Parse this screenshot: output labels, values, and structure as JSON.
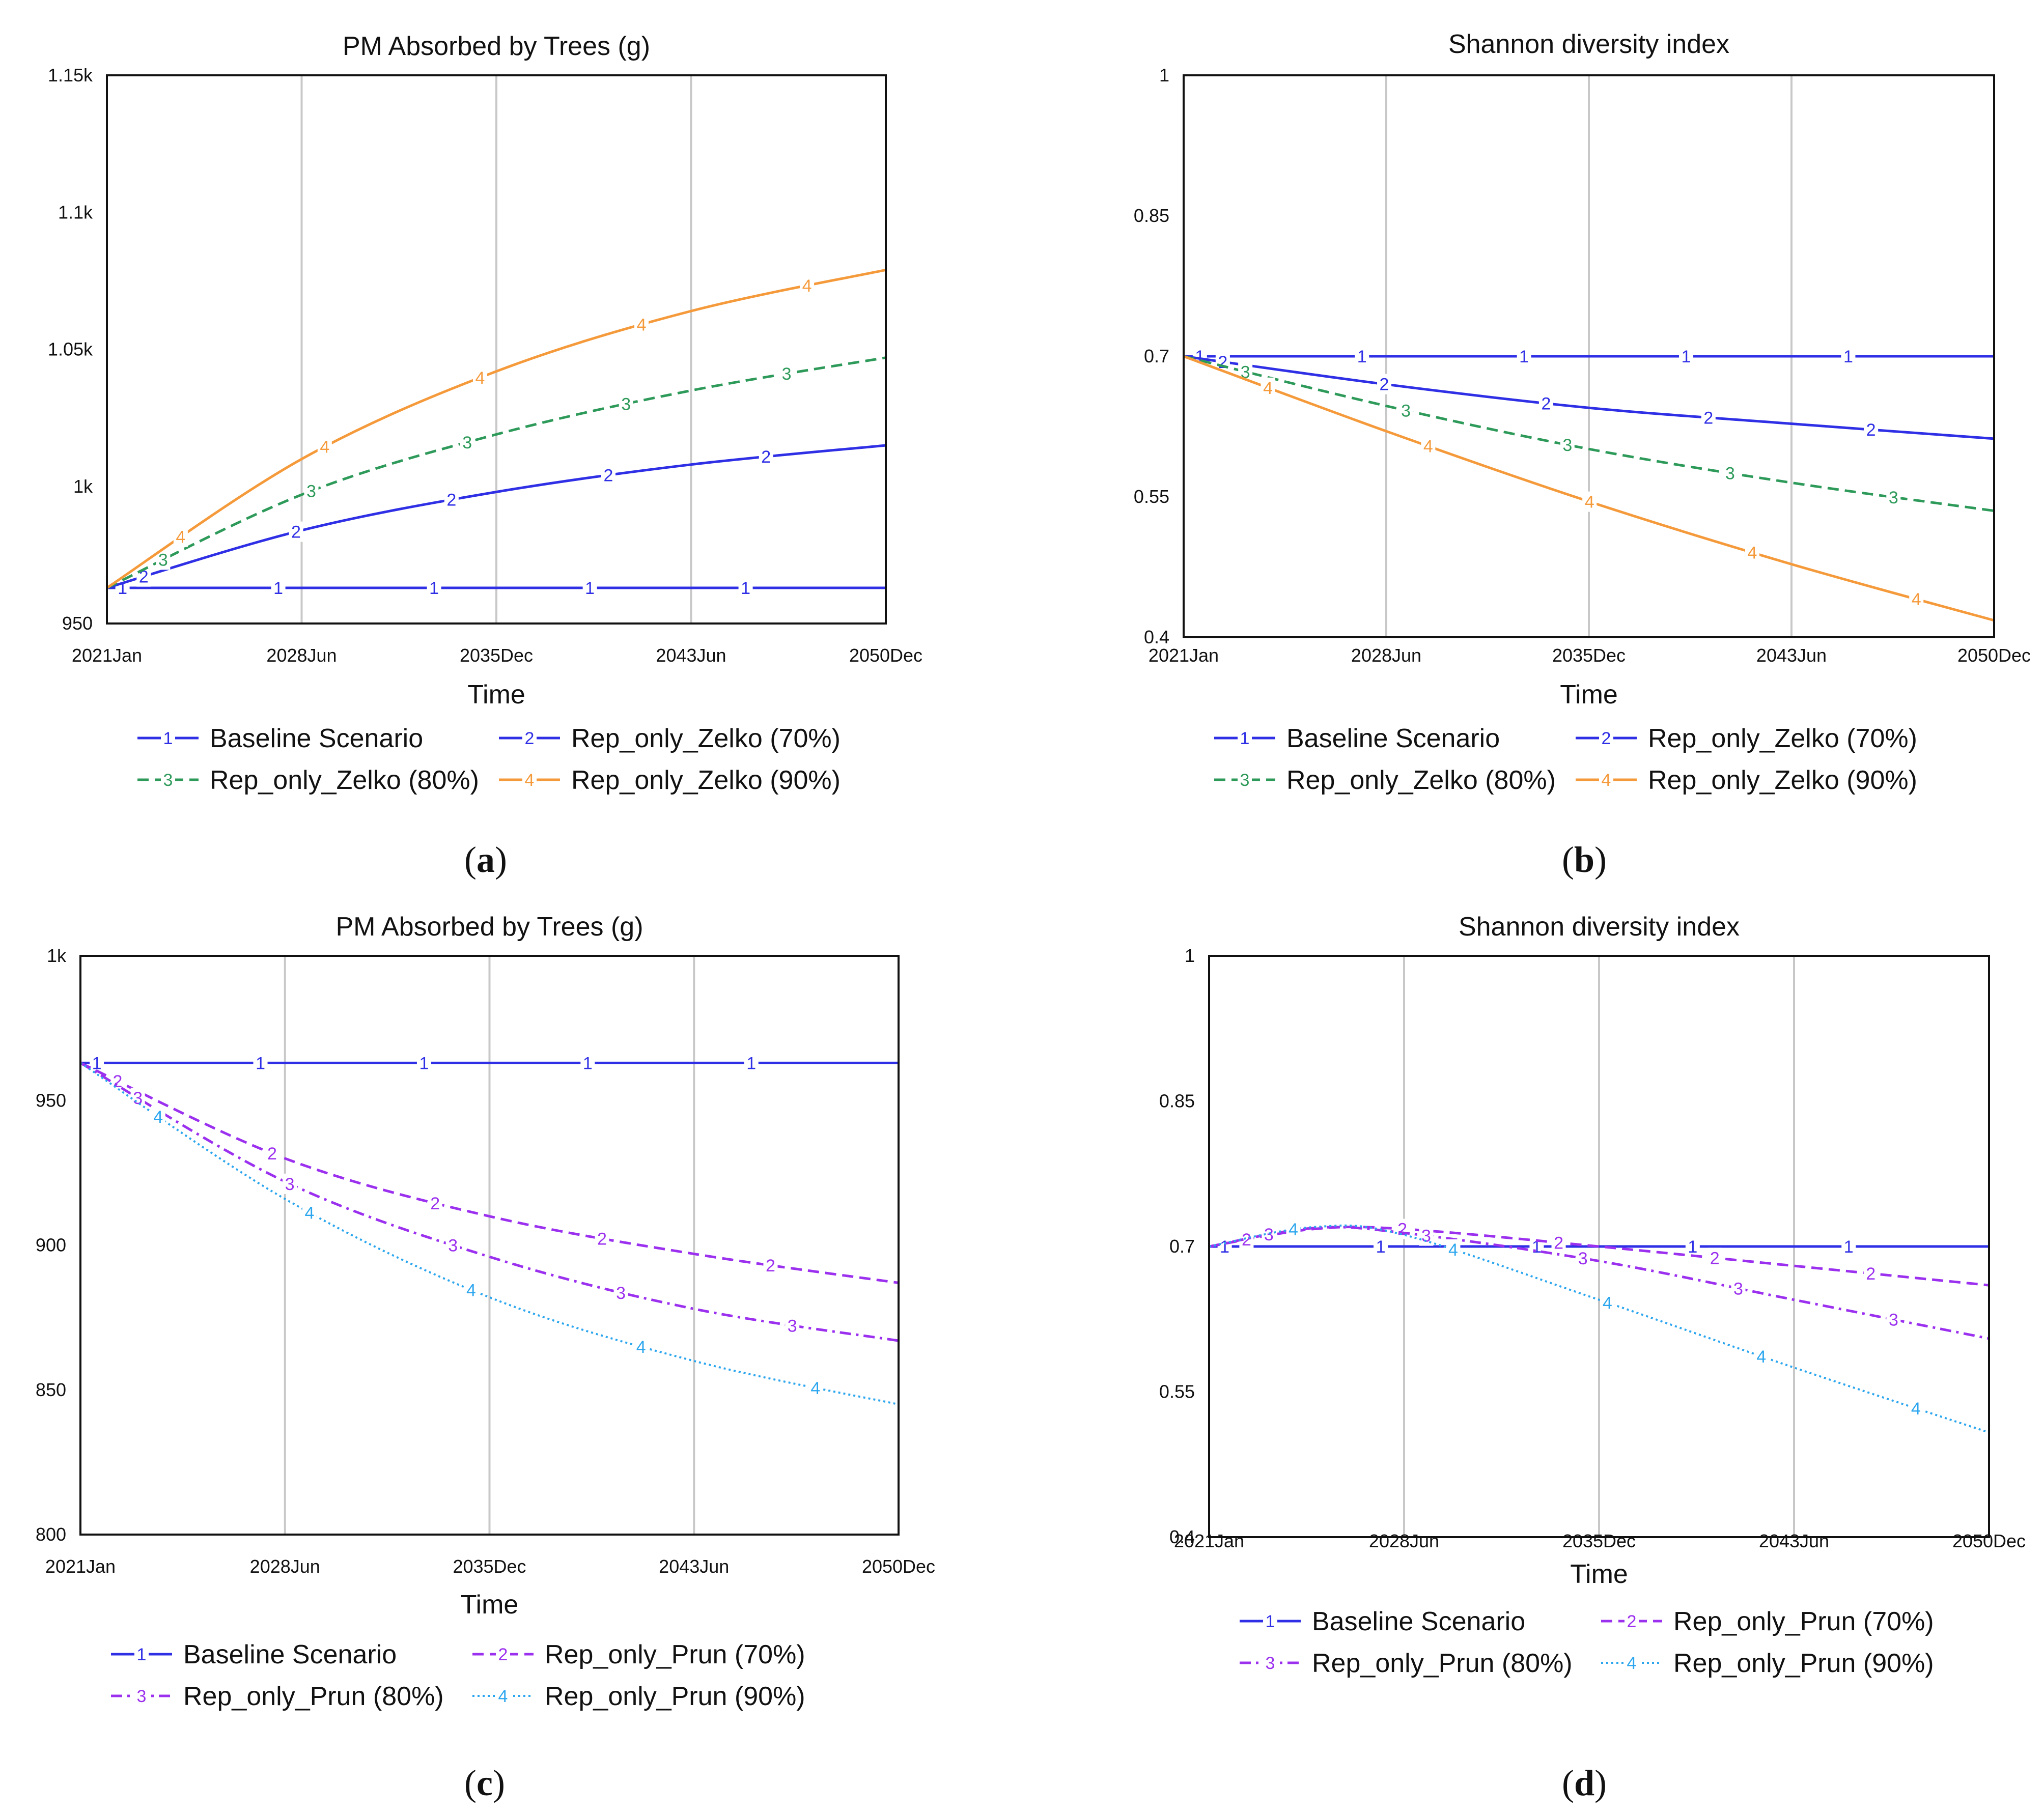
{
  "colors": {
    "baseline": "#2f2fe6",
    "zelko70": "#2f2fe6",
    "zelko80": "#2e9a5a",
    "zelko90": "#f59a3b",
    "prun70": "#9b30ef",
    "prun80": "#9b30ef",
    "prun90": "#2ba6ee",
    "grid": "#c8c8c8",
    "axis": "#111111"
  },
  "captions": {
    "a": [
      "(",
      "a",
      ")"
    ],
    "b": [
      "(",
      "b",
      ")"
    ],
    "c": [
      "(",
      "c",
      ")"
    ],
    "d": [
      "(",
      "d",
      ")"
    ]
  },
  "chart_data": [
    {
      "id": "a",
      "type": "line",
      "title": "PM Absorbed by Trees (g)",
      "xlabel": "Time",
      "ylabel": "",
      "x": [
        2021.0,
        2028.5,
        2036.0,
        2043.5,
        2051.0
      ],
      "xticks": [
        "2021Jan",
        "2028Jun",
        "2035Dec",
        "2043Jun",
        "2050Dec"
      ],
      "ylim": [
        950,
        1150
      ],
      "yticks": [
        950,
        1000,
        1050,
        1100,
        1150
      ],
      "ytick_labels": [
        "950",
        "1k",
        "1.05k",
        "1.1k",
        "1.15k"
      ],
      "series": [
        {
          "name": "Baseline Scenario",
          "marker": "1",
          "style": "solid",
          "color_key": "baseline",
          "values": [
            963,
            963,
            963,
            963,
            963
          ]
        },
        {
          "name": "Rep_only_Zelko (70%)",
          "marker": "2",
          "style": "solid",
          "color_key": "zelko70",
          "values": [
            963,
            984,
            998,
            1008,
            1015
          ]
        },
        {
          "name": "Rep_only_Zelko (80%)",
          "marker": "3",
          "style": "dashed",
          "color_key": "zelko80",
          "values": [
            963,
            997,
            1019,
            1035,
            1047
          ]
        },
        {
          "name": "Rep_only_Zelko (90%)",
          "marker": "4",
          "style": "solid",
          "color_key": "zelko90",
          "values": [
            963,
            1010,
            1042,
            1064,
            1079
          ]
        }
      ],
      "legend": [
        "Baseline Scenario",
        "Rep_only_Zelko (70%)",
        "Rep_only_Zelko (80%)",
        "Rep_only_Zelko (90%)"
      ]
    },
    {
      "id": "b",
      "type": "line",
      "title": "Shannon diversity index",
      "xlabel": "Time",
      "ylabel": "",
      "x": [
        2021.0,
        2028.5,
        2036.0,
        2043.5,
        2051.0
      ],
      "xticks": [
        "2021Jan",
        "2028Jun",
        "2035Dec",
        "2043Jun",
        "2050Dec"
      ],
      "ylim": [
        0.4,
        1.0
      ],
      "yticks": [
        0.4,
        0.55,
        0.7,
        0.85,
        1.0
      ],
      "ytick_labels": [
        "0.4",
        "0.55",
        "0.7",
        "0.85",
        "1"
      ],
      "series": [
        {
          "name": "Baseline Scenario",
          "marker": "1",
          "style": "solid",
          "color_key": "baseline",
          "values": [
            0.7,
            0.7,
            0.7,
            0.7,
            0.7
          ]
        },
        {
          "name": "Rep_only_Zelko (70%)",
          "marker": "2",
          "style": "solid",
          "color_key": "zelko70",
          "values": [
            0.7,
            0.67,
            0.645,
            0.628,
            0.612
          ]
        },
        {
          "name": "Rep_only_Zelko (80%)",
          "marker": "3",
          "style": "dashed",
          "color_key": "zelko80",
          "values": [
            0.7,
            0.647,
            0.601,
            0.565,
            0.535
          ]
        },
        {
          "name": "Rep_only_Zelko (90%)",
          "marker": "4",
          "style": "solid",
          "color_key": "zelko90",
          "values": [
            0.7,
            0.62,
            0.545,
            0.478,
            0.418
          ]
        }
      ],
      "legend": [
        "Baseline Scenario",
        "Rep_only_Zelko (70%)",
        "Rep_only_Zelko (80%)",
        "Rep_only_Zelko (90%)"
      ]
    },
    {
      "id": "c",
      "type": "line",
      "title": "PM Absorbed by Trees (g)",
      "xlabel": "Time",
      "ylabel": "",
      "x": [
        2021.0,
        2028.5,
        2036.0,
        2043.5,
        2051.0
      ],
      "xticks": [
        "2021Jan",
        "2028Jun",
        "2035Dec",
        "2043Jun",
        "2050Dec"
      ],
      "ylim": [
        800,
        1000
      ],
      "yticks": [
        800,
        850,
        900,
        950,
        1000
      ],
      "ytick_labels": [
        "800",
        "850",
        "900",
        "950",
        "1k"
      ],
      "series": [
        {
          "name": "Baseline Scenario",
          "marker": "1",
          "style": "solid",
          "color_key": "baseline",
          "values": [
            963,
            963,
            963,
            963,
            963
          ]
        },
        {
          "name": "Rep_only_Prun (70%)",
          "marker": "2",
          "style": "dashed",
          "color_key": "prun70",
          "values": [
            963,
            930,
            910,
            897,
            887
          ]
        },
        {
          "name": "Rep_only_Prun (80%)",
          "marker": "3",
          "style": "dashdot",
          "color_key": "prun80",
          "values": [
            963,
            922,
            896,
            878,
            867
          ]
        },
        {
          "name": "Rep_only_Prun (90%)",
          "marker": "4",
          "style": "dotted",
          "color_key": "prun90",
          "values": [
            963,
            916,
            882,
            860,
            845
          ]
        }
      ],
      "legend": [
        "Baseline Scenario",
        "Rep_only_Prun (70%)",
        "Rep_only_Prun (80%)",
        "Rep_only_Prun (90%)"
      ]
    },
    {
      "id": "d",
      "type": "line",
      "title": "Shannon diversity index",
      "xlabel": "Time",
      "ylabel": "",
      "x": [
        2021.0,
        2025.0,
        2028.5,
        2036.0,
        2043.5,
        2051.0
      ],
      "xticks": [
        "2021Jan",
        "2028Jun",
        "2035Dec",
        "2043Jun",
        "2050Dec"
      ],
      "ylim": [
        0.4,
        1.0
      ],
      "yticks": [
        0.4,
        0.55,
        0.7,
        0.85,
        1.0
      ],
      "ytick_labels": [
        "0.4",
        "0.55",
        "0.7",
        "0.85",
        "1"
      ],
      "series": [
        {
          "name": "Baseline Scenario",
          "marker": "1",
          "style": "solid",
          "color_key": "baseline",
          "values": [
            0.7,
            0.7,
            0.7,
            0.7,
            0.7,
            0.7
          ]
        },
        {
          "name": "Rep_only_Prun (70%)",
          "marker": "2",
          "style": "dashed",
          "color_key": "prun70",
          "values": [
            0.7,
            0.718,
            0.718,
            0.7,
            0.68,
            0.66
          ]
        },
        {
          "name": "Rep_only_Prun (80%)",
          "marker": "3",
          "style": "dashdot",
          "color_key": "prun80",
          "values": [
            0.7,
            0.719,
            0.714,
            0.685,
            0.645,
            0.605
          ]
        },
        {
          "name": "Rep_only_Prun (90%)",
          "marker": "4",
          "style": "dotted",
          "color_key": "prun90",
          "values": [
            0.7,
            0.72,
            0.712,
            0.645,
            0.575,
            0.508
          ]
        }
      ],
      "legend": [
        "Baseline Scenario",
        "Rep_only_Prun (70%)",
        "Rep_only_Prun (80%)",
        "Rep_only_Prun (90%)"
      ]
    }
  ]
}
